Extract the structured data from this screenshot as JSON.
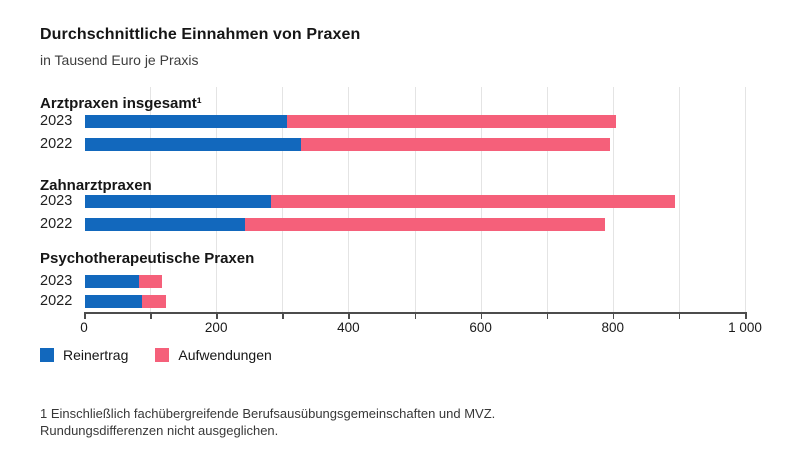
{
  "page": {
    "title": "Durchschnittliche Einnahmen von Praxen",
    "subtitle": "in Tausend Euro je Praxis"
  },
  "chart_data": {
    "type": "bar",
    "orientation": "horizontal",
    "stacked": true,
    "title": "Durchschnittliche Einnahmen von Praxen",
    "subtitle": "in Tausend Euro je Praxis",
    "unit": "Tausend Euro je Praxis",
    "xlim": [
      0,
      1000
    ],
    "x_major_ticks": [
      0,
      200,
      400,
      600,
      800,
      1000
    ],
    "x_major_tick_labels": [
      "0",
      "200",
      "400",
      "600",
      "800",
      "1 000"
    ],
    "x_minor_tick_step": 100,
    "grid": true,
    "series": [
      "Reinertrag",
      "Aufwendungen"
    ],
    "groups": [
      {
        "label": "Arztpraxen insgesamt¹",
        "rows": [
          {
            "year": "2023",
            "reinertrag": 306,
            "aufwendungen": 497
          },
          {
            "year": "2022",
            "reinertrag": 327,
            "aufwendungen": 467
          }
        ]
      },
      {
        "label": "Zahnarztpraxen",
        "rows": [
          {
            "year": "2023",
            "reinertrag": 281,
            "aufwendungen": 611
          },
          {
            "year": "2022",
            "reinertrag": 242,
            "aufwendungen": 545
          }
        ]
      },
      {
        "label": "Psychotherapeutische Praxen",
        "rows": [
          {
            "year": "2023",
            "reinertrag": 82,
            "aufwendungen": 35
          },
          {
            "year": "2022",
            "reinertrag": 86,
            "aufwendungen": 36
          }
        ]
      }
    ],
    "legend": {
      "position": "bottom-left",
      "items": [
        {
          "label": "Reinertrag",
          "color": "#1268bd"
        },
        {
          "label": "Aufwendungen",
          "color": "#f5607a"
        }
      ]
    }
  },
  "footnotes": {
    "line1": "1 Einschließlich fachübergreifende Berufsausübungsgemeinschaften und MVZ.",
    "line2": "Rundungsdifferenzen nicht ausgeglichen."
  }
}
